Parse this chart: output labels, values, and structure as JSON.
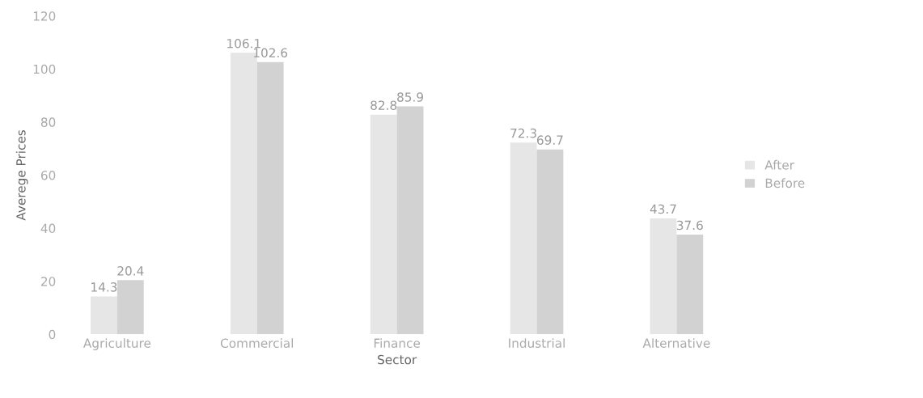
{
  "chart_data": {
    "type": "bar",
    "xlabel": "Sector",
    "ylabel": "Averege Prices",
    "categories": [
      "Agriculture",
      "Commercial",
      "Finance",
      "Industrial",
      "Alternative"
    ],
    "series": [
      {
        "name": "After",
        "color": "#e6e6e6",
        "values": [
          14.3,
          106.1,
          82.8,
          72.3,
          43.7
        ]
      },
      {
        "name": "Before",
        "color": "#d2d2d2",
        "values": [
          20.4,
          102.6,
          85.9,
          69.7,
          37.6
        ]
      }
    ],
    "ylim": [
      0,
      120
    ],
    "yticks": [
      0,
      20,
      40,
      60,
      80,
      100,
      120
    ],
    "data_labels": true,
    "legend": "right",
    "grid": false
  }
}
